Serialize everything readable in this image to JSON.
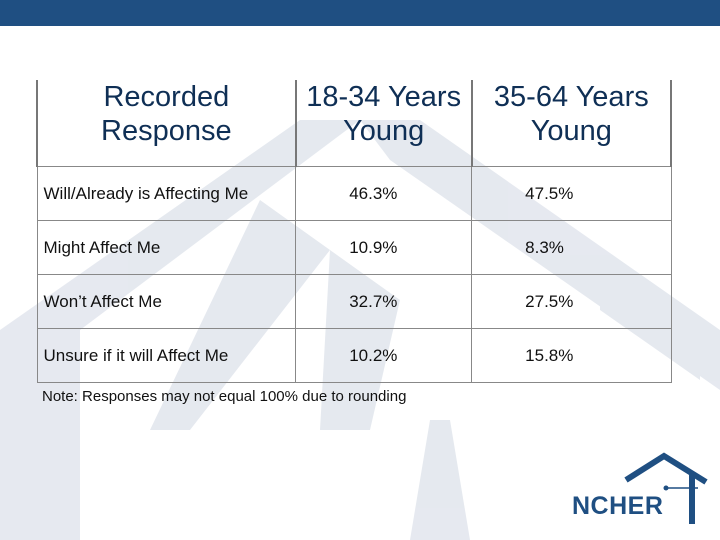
{
  "table": {
    "headers": [
      "Recorded Response",
      "18-34 Years Young",
      "35-64 Years Young"
    ],
    "header_lines": [
      [
        "Recorded",
        "Response"
      ],
      [
        "18-34 Years",
        "Young"
      ],
      [
        "35-64 Years",
        "Young"
      ]
    ],
    "rows": [
      {
        "label": "Will/Already is Affecting Me",
        "values": [
          "46.3%",
          "47.5%"
        ]
      },
      {
        "label": "Might Affect Me",
        "values": [
          "10.9%",
          "8.3%"
        ]
      },
      {
        "label": "Won’t Affect Me",
        "values": [
          "32.7%",
          "27.5%"
        ]
      },
      {
        "label": "Unsure if it will Affect Me",
        "values": [
          "10.2%",
          "15.8%"
        ]
      }
    ]
  },
  "note": "Note: Responses may not equal 100% due to rounding",
  "logo": {
    "text": "NCHER",
    "icon": "house-roof-icon"
  },
  "colors": {
    "top_bar": "#1f4f82",
    "header_text": "#0f2f55",
    "watermark": "#dfe3ea",
    "logo": "#1f4f82"
  }
}
